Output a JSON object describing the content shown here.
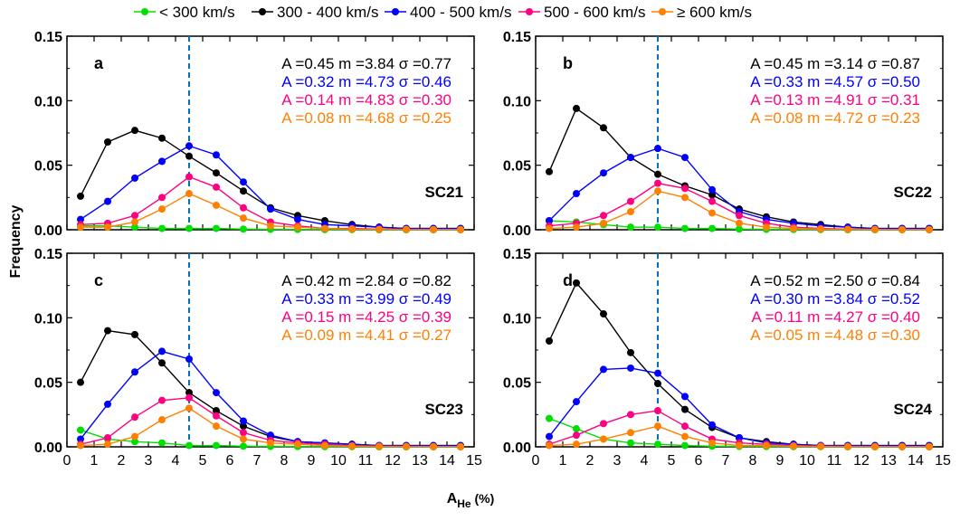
{
  "chart_data": {
    "type": "line",
    "legend": [
      {
        "label": "< 300 km/s",
        "color": "#00e000"
      },
      {
        "label": "300 - 400 km/s",
        "color": "#000000"
      },
      {
        "label": "400 - 500 km/s",
        "color": "#0000ff"
      },
      {
        "label": "500 - 600 km/s",
        "color": "#ff0080"
      },
      {
        "label": "≥ 600 km/s",
        "color": "#ff8000"
      }
    ],
    "ylabel": "Frequency",
    "xlabel_main": "A",
    "xlabel_sub": "He",
    "xlabel_unit": "(%)",
    "xlim": [
      0,
      15
    ],
    "ylim": [
      0,
      0.15
    ],
    "x_ticks": [
      "0",
      "1",
      "2",
      "3",
      "4",
      "5",
      "6",
      "7",
      "8",
      "9",
      "10",
      "11",
      "12",
      "13",
      "14",
      "15"
    ],
    "y_ticks": [
      "0.00",
      "0.05",
      "0.10",
      "0.15"
    ],
    "vline_x": 4.5,
    "x": [
      0.5,
      1.5,
      2.5,
      3.5,
      4.5,
      5.5,
      6.5,
      7.5,
      8.5,
      9.5,
      10.5,
      11.5,
      12.5,
      13.5,
      14.5
    ],
    "panels": [
      {
        "letter": "a",
        "cycle": "SC21",
        "fits": [
          {
            "text": "A =0.45  m =3.84  σ =0.77",
            "color": "#000000"
          },
          {
            "text": "A =0.32  m =4.73  σ =0.46",
            "color": "#0000ff"
          },
          {
            "text": "A =0.14  m =4.83  σ =0.30",
            "color": "#ff0080"
          },
          {
            "text": "A =0.08  m =4.68  σ =0.25",
            "color": "#ff8000"
          }
        ],
        "series": [
          {
            "values": [
              0.003,
              0.003,
              0.002,
              0.001,
              0.001,
              0.001,
              0.0005,
              0.0003,
              0.0002,
              0.0001,
              0.0001,
              0,
              0,
              0,
              0
            ]
          },
          {
            "values": [
              0.026,
              0.068,
              0.077,
              0.071,
              0.057,
              0.044,
              0.03,
              0.017,
              0.011,
              0.007,
              0.004,
              0.002,
              0.001,
              0.001,
              0.001
            ]
          },
          {
            "values": [
              0.008,
              0.022,
              0.04,
              0.053,
              0.065,
              0.058,
              0.037,
              0.016,
              0.008,
              0.004,
              0.003,
              0.002,
              0.001,
              0.001,
              0.001
            ]
          },
          {
            "values": [
              0.004,
              0.005,
              0.011,
              0.025,
              0.041,
              0.033,
              0.017,
              0.006,
              0.003,
              0.001,
              0.001,
              0.0005,
              0.0003,
              0.0002,
              0.0001
            ]
          },
          {
            "values": [
              0.002,
              0.002,
              0.006,
              0.016,
              0.028,
              0.019,
              0.009,
              0.003,
              0.002,
              0.001,
              0.0005,
              0.0003,
              0.0002,
              0.0001,
              0.0001
            ]
          }
        ]
      },
      {
        "letter": "b",
        "cycle": "SC22",
        "fits": [
          {
            "text": "A =0.45  m =3.14  σ =0.87",
            "color": "#000000"
          },
          {
            "text": "A =0.33  m =4.57  σ =0.50",
            "color": "#0000ff"
          },
          {
            "text": "A =0.13  m =4.91  σ =0.31",
            "color": "#ff0080"
          },
          {
            "text": "A =0.08  m =4.72  σ =0.23",
            "color": "#ff8000"
          }
        ],
        "series": [
          {
            "values": [
              0.007,
              0.006,
              0.004,
              0.002,
              0.002,
              0.001,
              0.001,
              0.0005,
              0.0003,
              0.0002,
              0.0001,
              0,
              0,
              0,
              0
            ]
          },
          {
            "values": [
              0.045,
              0.094,
              0.079,
              0.056,
              0.043,
              0.034,
              0.027,
              0.016,
              0.01,
              0.006,
              0.004,
              0.002,
              0.001,
              0.001,
              0.001
            ]
          },
          {
            "values": [
              0.007,
              0.028,
              0.044,
              0.056,
              0.063,
              0.056,
              0.031,
              0.014,
              0.008,
              0.005,
              0.003,
              0.002,
              0.001,
              0.001,
              0.001
            ]
          },
          {
            "values": [
              0.003,
              0.005,
              0.011,
              0.022,
              0.036,
              0.032,
              0.022,
              0.011,
              0.005,
              0.002,
              0.001,
              0.0005,
              0.0003,
              0.0002,
              0.0001
            ]
          },
          {
            "values": [
              0.001,
              0.002,
              0.005,
              0.014,
              0.03,
              0.025,
              0.013,
              0.005,
              0.002,
              0.001,
              0.0005,
              0.0003,
              0.0002,
              0.0001,
              0.0001
            ]
          }
        ]
      },
      {
        "letter": "c",
        "cycle": "SC23",
        "fits": [
          {
            "text": "A =0.42  m =2.84  σ =0.82",
            "color": "#000000"
          },
          {
            "text": "A =0.33  m =3.99  σ =0.49",
            "color": "#0000ff"
          },
          {
            "text": "A =0.15  m =4.25  σ =0.39",
            "color": "#ff0080"
          },
          {
            "text": "A =0.09  m =4.41  σ =0.27",
            "color": "#ff8000"
          }
        ],
        "series": [
          {
            "values": [
              0.013,
              0.006,
              0.004,
              0.003,
              0.001,
              0.001,
              0.0005,
              0.0003,
              0.0002,
              0.0001,
              0.0001,
              0,
              0,
              0,
              0
            ]
          },
          {
            "values": [
              0.05,
              0.09,
              0.087,
              0.065,
              0.042,
              0.028,
              0.016,
              0.008,
              0.004,
              0.003,
              0.002,
              0.001,
              0.001,
              0.001,
              0.001
            ]
          },
          {
            "values": [
              0.006,
              0.033,
              0.058,
              0.074,
              0.068,
              0.042,
              0.02,
              0.009,
              0.004,
              0.003,
              0.002,
              0.001,
              0.001,
              0.001,
              0.001
            ]
          },
          {
            "values": [
              0.002,
              0.007,
              0.023,
              0.036,
              0.038,
              0.024,
              0.011,
              0.005,
              0.003,
              0.002,
              0.001,
              0.0005,
              0.0003,
              0.0002,
              0.0001
            ]
          },
          {
            "values": [
              0.001,
              0.002,
              0.008,
              0.021,
              0.03,
              0.016,
              0.006,
              0.003,
              0.002,
              0.001,
              0.0005,
              0.0003,
              0.0002,
              0.0001,
              0.0001
            ]
          }
        ]
      },
      {
        "letter": "d",
        "cycle": "SC24",
        "fits": [
          {
            "text": "A =0.52  m =2.50  σ =0.84",
            "color": "#000000"
          },
          {
            "text": "A =0.30  m =3.84  σ =0.52",
            "color": "#0000ff"
          },
          {
            "text": "A =0.11  m =4.27  σ =0.40",
            "color": "#ff0080"
          },
          {
            "text": "A =0.05  m =4.48  σ =0.30",
            "color": "#ff8000"
          }
        ],
        "series": [
          {
            "values": [
              0.022,
              0.014,
              0.006,
              0.003,
              0.002,
              0.001,
              0.0005,
              0.0003,
              0.0002,
              0.0001,
              0.0001,
              0,
              0,
              0,
              0
            ]
          },
          {
            "values": [
              0.082,
              0.127,
              0.103,
              0.073,
              0.049,
              0.029,
              0.015,
              0.007,
              0.004,
              0.002,
              0.001,
              0.001,
              0.001,
              0.001,
              0.001
            ]
          },
          {
            "values": [
              0.008,
              0.035,
              0.06,
              0.061,
              0.057,
              0.039,
              0.017,
              0.007,
              0.003,
              0.002,
              0.001,
              0.001,
              0.001,
              0.001,
              0.001
            ]
          },
          {
            "values": [
              0.002,
              0.009,
              0.018,
              0.025,
              0.028,
              0.016,
              0.006,
              0.003,
              0.002,
              0.001,
              0.0005,
              0.0003,
              0.0002,
              0.0001,
              0.0001
            ]
          },
          {
            "values": [
              0.001,
              0.002,
              0.006,
              0.011,
              0.016,
              0.008,
              0.003,
              0.001,
              0.001,
              0.0005,
              0.0003,
              0.0002,
              0.0001,
              0.0001,
              0.0001
            ]
          }
        ]
      }
    ]
  }
}
